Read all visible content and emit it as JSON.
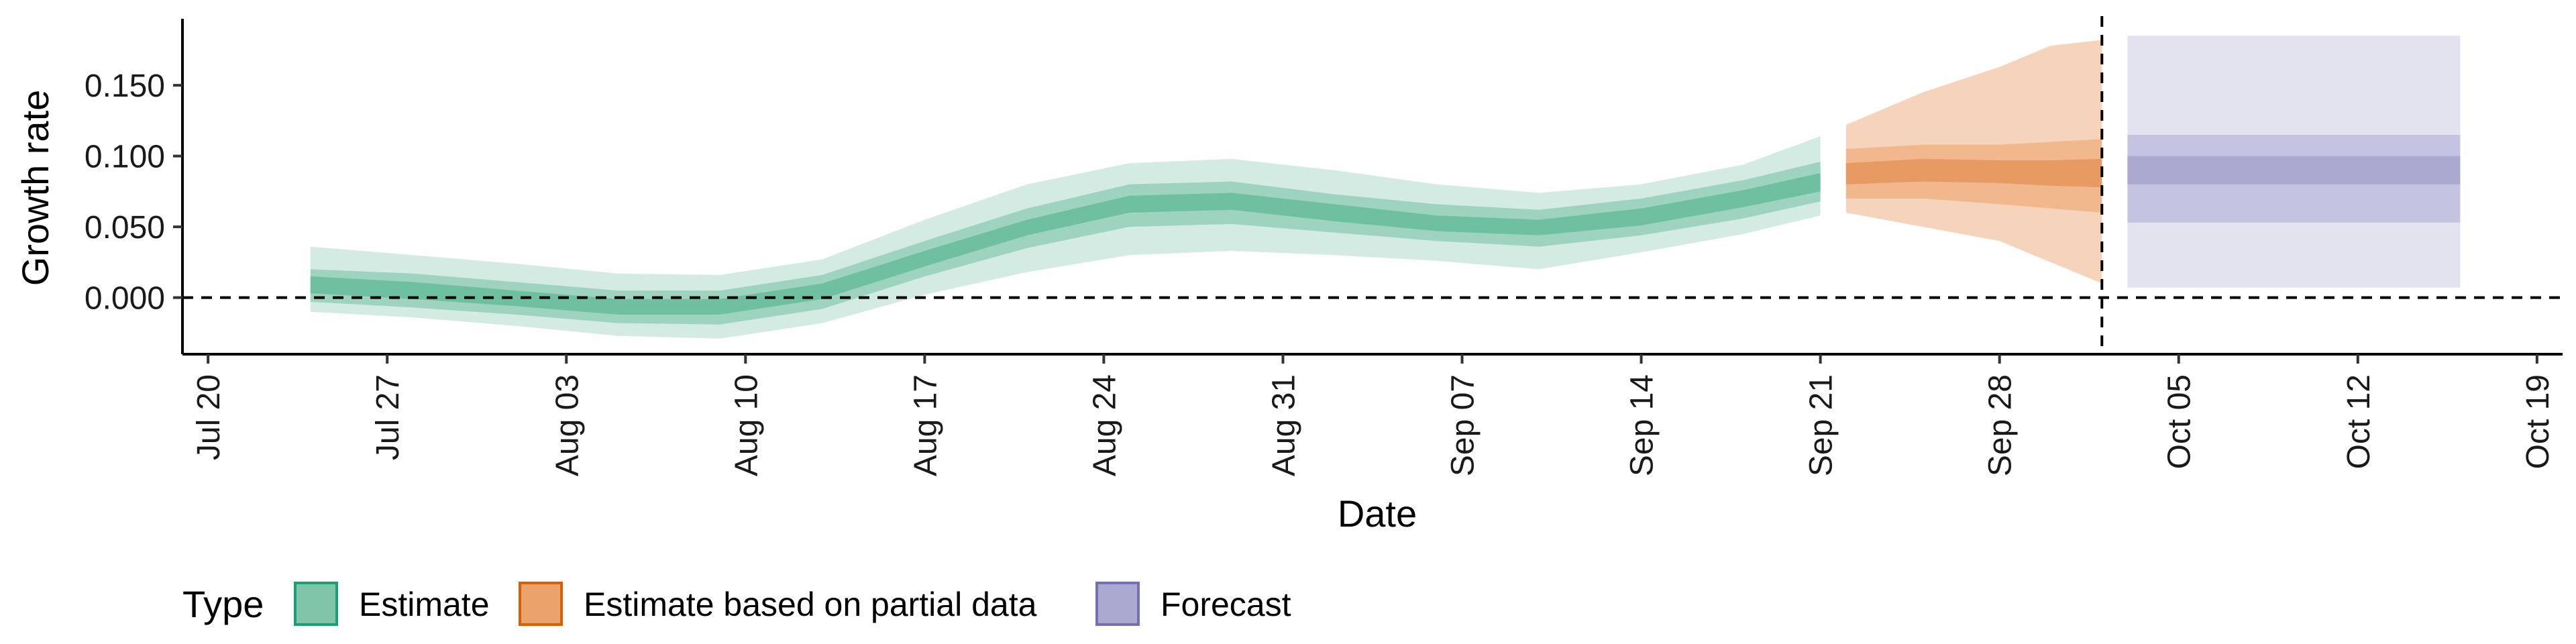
{
  "chart_data": {
    "type": "area",
    "xlabel": "Date",
    "ylabel": "Growth rate",
    "xlim": [
      "2020-07-19",
      "2020-10-20"
    ],
    "ylim": [
      -0.04,
      0.197
    ],
    "x_ticks": [
      "2020-07-20",
      "2020-07-27",
      "2020-08-03",
      "2020-08-10",
      "2020-08-17",
      "2020-08-24",
      "2020-08-31",
      "2020-09-07",
      "2020-09-14",
      "2020-09-21",
      "2020-09-28",
      "2020-10-05",
      "2020-10-12",
      "2020-10-19"
    ],
    "x_tick_labels": [
      "Jul 20",
      "Jul 27",
      "Aug 03",
      "Aug 10",
      "Aug 17",
      "Aug 24",
      "Aug 31",
      "Sep 07",
      "Sep 14",
      "Sep 21",
      "Sep 28",
      "Oct 05",
      "Oct 12",
      "Oct 19"
    ],
    "y_ticks": [
      0,
      0.05,
      0.1,
      0.15
    ],
    "y_tick_labels": [
      "0.000",
      "0.050",
      "0.100",
      "0.150"
    ],
    "reference_lines": {
      "hline_y": 0,
      "vline_date": "2020-10-02"
    },
    "grid": false,
    "legend": {
      "title": "Type",
      "position": "bottom-left",
      "items": [
        {
          "label": "Estimate",
          "fill": "#7fc6a9",
          "border": "#1b9e77"
        },
        {
          "label": "Estimate based on partial data",
          "fill": "#eba36b",
          "border": "#d95f02"
        },
        {
          "label": "Forecast",
          "fill": "#aaa9cf",
          "border": "#7570b3"
        }
      ]
    },
    "series": [
      {
        "name": "Estimate",
        "colors": {
          "outer": "#d3ebe2",
          "mid": "#9dd3bf",
          "inner": "#6fc0a1"
        },
        "points": [
          [
            "2020-07-24",
            0.01,
            0.003,
            0.015,
            -0.003,
            0.02,
            -0.01,
            0.036
          ],
          [
            "2020-07-28",
            0.006,
            -0.001,
            0.011,
            -0.007,
            0.017,
            -0.014,
            0.03
          ],
          [
            "2020-08-01",
            0.0,
            -0.006,
            0.005,
            -0.012,
            0.011,
            -0.02,
            0.024
          ],
          [
            "2020-08-05",
            -0.006,
            -0.012,
            -0.001,
            -0.018,
            0.005,
            -0.027,
            0.017
          ],
          [
            "2020-08-09",
            -0.006,
            -0.012,
            -0.001,
            -0.019,
            0.005,
            -0.029,
            0.016
          ],
          [
            "2020-08-13",
            0.005,
            -0.001,
            0.01,
            -0.008,
            0.016,
            -0.018,
            0.027
          ],
          [
            "2020-08-17",
            0.028,
            0.022,
            0.033,
            0.015,
            0.04,
            0.002,
            0.055
          ],
          [
            "2020-08-21",
            0.05,
            0.044,
            0.055,
            0.035,
            0.063,
            0.018,
            0.08
          ],
          [
            "2020-08-25",
            0.066,
            0.06,
            0.072,
            0.05,
            0.08,
            0.03,
            0.095
          ],
          [
            "2020-08-29",
            0.068,
            0.062,
            0.074,
            0.052,
            0.082,
            0.033,
            0.098
          ],
          [
            "2020-09-02",
            0.06,
            0.054,
            0.066,
            0.046,
            0.073,
            0.03,
            0.09
          ],
          [
            "2020-09-06",
            0.053,
            0.047,
            0.058,
            0.04,
            0.066,
            0.026,
            0.08
          ],
          [
            "2020-09-10",
            0.05,
            0.044,
            0.055,
            0.036,
            0.062,
            0.02,
            0.074
          ],
          [
            "2020-09-14",
            0.057,
            0.051,
            0.063,
            0.044,
            0.07,
            0.032,
            0.08
          ],
          [
            "2020-09-18",
            0.07,
            0.064,
            0.076,
            0.056,
            0.083,
            0.045,
            0.094
          ],
          [
            "2020-09-21",
            0.082,
            0.075,
            0.088,
            0.068,
            0.096,
            0.058,
            0.114
          ]
        ]
      },
      {
        "name": "Estimate based on partial data",
        "colors": {
          "outer": "#f6d4bc",
          "mid": "#f1b78d",
          "inner": "#e79a61"
        },
        "points": [
          [
            "2020-09-22",
            0.088,
            0.08,
            0.095,
            0.07,
            0.105,
            0.06,
            0.122
          ],
          [
            "2020-09-25",
            0.09,
            0.082,
            0.098,
            0.07,
            0.108,
            0.05,
            0.145
          ],
          [
            "2020-09-28",
            0.089,
            0.081,
            0.097,
            0.066,
            0.108,
            0.04,
            0.163
          ],
          [
            "2020-09-30",
            0.088,
            0.079,
            0.097,
            0.063,
            0.11,
            0.025,
            0.178
          ],
          [
            "2020-10-02",
            0.089,
            0.078,
            0.098,
            0.06,
            0.112,
            0.01,
            0.182
          ]
        ]
      },
      {
        "name": "Forecast",
        "colors": {
          "outer": "#e3e3f0",
          "mid": "#c4c3e2",
          "inner": "#aaa9cf"
        },
        "points": [
          [
            "2020-10-03",
            0.09,
            0.08,
            0.1,
            0.053,
            0.115,
            0.007,
            0.185
          ],
          [
            "2020-10-16",
            0.09,
            0.08,
            0.1,
            0.053,
            0.115,
            0.007,
            0.185
          ]
        ]
      }
    ],
    "point_fields": [
      "date",
      "median",
      "lower_20",
      "upper_20",
      "lower_50",
      "upper_50",
      "lower_90",
      "upper_90"
    ]
  }
}
